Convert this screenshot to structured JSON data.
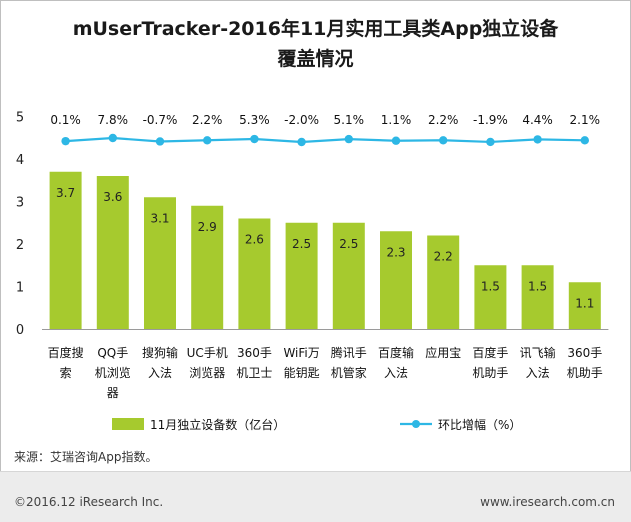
{
  "title_line1": "mUserTracker-2016年11月实用工具类App独立设备",
  "title_line2": "覆盖情况",
  "source": "来源：艾瑞咨询App指数。",
  "footer": {
    "copyright": "©2016.12 iResearch Inc.",
    "website": "www.iresearch.com.cn"
  },
  "chart_data": {
    "type": "bar",
    "categories": [
      [
        "百度搜",
        "索"
      ],
      [
        "QQ手",
        "机浏览",
        "器"
      ],
      [
        "搜狗输",
        "入法"
      ],
      [
        "UC手机",
        "浏览器"
      ],
      [
        "360手",
        "机卫士"
      ],
      [
        "WiFi万",
        "能钥匙"
      ],
      [
        "腾讯手",
        "机管家"
      ],
      [
        "百度输",
        "入法"
      ],
      [
        "应用宝"
      ],
      [
        "百度手",
        "机助手"
      ],
      [
        "讯飞输",
        "入法"
      ],
      [
        "360手",
        "机助手"
      ]
    ],
    "series": [
      {
        "name": "11月独立设备数（亿台）",
        "type": "bar",
        "color": "#a6ca2e",
        "values": [
          3.7,
          3.6,
          3.1,
          2.9,
          2.6,
          2.5,
          2.5,
          2.3,
          2.2,
          1.5,
          1.5,
          1.1
        ],
        "labels": [
          "3.7",
          "3.6",
          "3.1",
          "2.9",
          "2.6",
          "2.5",
          "2.5",
          "2.3",
          "2.2",
          "1.5",
          "1.5",
          "1.1"
        ]
      },
      {
        "name": "环比增幅（%）",
        "type": "line",
        "color": "#2db7e5",
        "values": [
          0.1,
          7.8,
          -0.7,
          2.2,
          5.3,
          -2.0,
          5.1,
          1.1,
          2.2,
          -1.9,
          4.4,
          2.1
        ],
        "labels": [
          "0.1%",
          "7.8%",
          "-0.7%",
          "2.2%",
          "5.3%",
          "-2.0%",
          "5.1%",
          "1.1%",
          "2.2%",
          "-1.9%",
          "4.4%",
          "2.1%"
        ]
      }
    ],
    "ylim": [
      0,
      5
    ],
    "yticks": [
      "0",
      "1",
      "2",
      "3",
      "4",
      "5"
    ],
    "grid": false,
    "legend_position": "bottom"
  }
}
